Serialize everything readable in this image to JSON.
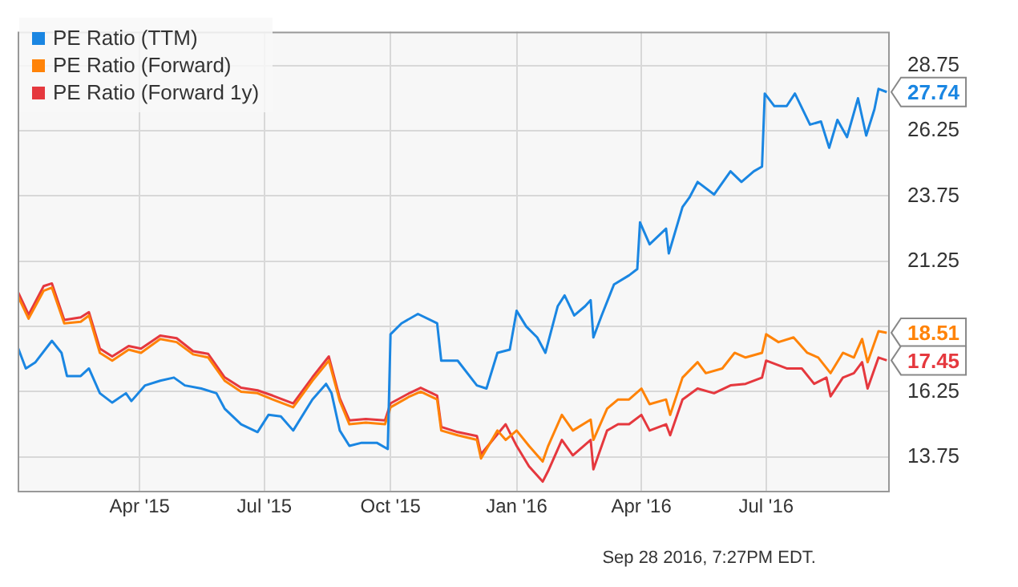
{
  "chart_data": {
    "type": "line",
    "xlim": [
      "2015-01-02",
      "2016-09-28"
    ],
    "xticks": [
      {
        "value": "2015-04-01",
        "label": "Apr '15"
      },
      {
        "value": "2015-07-01",
        "label": "Jul '15"
      },
      {
        "value": "2015-10-01",
        "label": "Oct '15"
      },
      {
        "value": "2016-01-01",
        "label": "Jan '16"
      },
      {
        "value": "2016-04-01",
        "label": "Apr '16"
      },
      {
        "value": "2016-07-01",
        "label": "Jul '16"
      }
    ],
    "ylim": [
      12.45,
      30.05
    ],
    "yticks": [
      13.75,
      16.25,
      {
        "value": 18.75,
        "label": null
      },
      21.25,
      23.75,
      26.25,
      28.75
    ],
    "grid": true,
    "legend": "top left",
    "marker": "none",
    "line_style": "solid",
    "annotations": [
      "Sep 28 2016, 7:27PM EDT."
    ],
    "series": [
      {
        "name": "PE Ratio (TTM)",
        "color": "#1a86e2",
        "x": [
          "2015-01-02",
          "2015-01-08",
          "2015-01-15",
          "2015-01-27",
          "2015-02-03",
          "2015-02-07",
          "2015-02-17",
          "2015-02-23",
          "2015-03-03",
          "2015-03-12",
          "2015-03-22",
          "2015-03-26",
          "2015-04-05",
          "2015-04-16",
          "2015-04-26",
          "2015-05-04",
          "2015-05-16",
          "2015-05-27",
          "2015-06-02",
          "2015-06-14",
          "2015-06-26",
          "2015-07-04",
          "2015-07-13",
          "2015-07-22",
          "2015-08-05",
          "2015-08-15",
          "2015-08-19",
          "2015-08-25",
          "2015-09-01",
          "2015-09-10",
          "2015-09-21",
          "2015-09-29",
          "2015-10-01",
          "2015-10-09",
          "2015-10-21",
          "2015-11-04",
          "2015-11-07",
          "2015-11-19",
          "2015-12-03",
          "2015-12-10",
          "2015-12-18",
          "2015-12-27",
          "2016-01-01",
          "2016-01-08",
          "2016-01-16",
          "2016-01-22",
          "2016-01-31",
          "2016-02-05",
          "2016-02-12",
          "2016-02-20",
          "2016-02-24",
          "2016-02-26",
          "2016-03-03",
          "2016-03-12",
          "2016-03-23",
          "2016-03-29",
          "2016-03-31",
          "2016-04-07",
          "2016-04-19",
          "2016-04-21",
          "2016-05-01",
          "2016-05-06",
          "2016-05-12",
          "2016-05-24",
          "2016-06-05",
          "2016-06-13",
          "2016-06-22",
          "2016-06-28",
          "2016-06-30",
          "2016-07-07",
          "2016-07-16",
          "2016-07-22",
          "2016-08-02",
          "2016-08-10",
          "2016-08-16",
          "2016-08-22",
          "2016-08-29",
          "2016-09-06",
          "2016-09-12",
          "2016-09-18",
          "2016-09-21",
          "2016-09-27"
        ],
        "values": [
          17.97,
          17.14,
          17.38,
          18.2,
          17.74,
          16.85,
          16.85,
          17.14,
          16.19,
          15.83,
          16.19,
          15.89,
          16.49,
          16.67,
          16.79,
          16.49,
          16.37,
          16.19,
          15.6,
          15.0,
          14.7,
          15.36,
          15.3,
          14.76,
          15.95,
          16.55,
          16.19,
          14.76,
          14.17,
          14.29,
          14.29,
          14.05,
          18.45,
          18.87,
          19.23,
          18.87,
          17.44,
          17.44,
          16.49,
          16.37,
          17.74,
          17.86,
          19.35,
          18.75,
          18.33,
          17.74,
          19.53,
          19.94,
          19.17,
          19.53,
          19.76,
          18.33,
          19.17,
          20.36,
          20.71,
          20.95,
          22.74,
          21.9,
          22.5,
          21.55,
          23.33,
          23.69,
          24.29,
          23.81,
          24.7,
          24.29,
          24.7,
          24.88,
          27.68,
          27.2,
          27.2,
          27.68,
          26.49,
          26.61,
          25.6,
          26.67,
          26.01,
          27.5,
          26.07,
          27.08,
          27.86,
          27.74
        ],
        "value_labels": [
          null,
          null,
          null,
          null,
          null,
          null,
          null,
          null,
          null,
          null,
          null,
          null,
          null,
          null,
          null,
          null,
          null,
          null,
          null,
          null,
          null,
          null,
          null,
          null,
          null,
          null,
          null,
          null,
          null,
          null,
          null,
          null,
          null,
          null,
          null,
          null,
          null,
          null,
          null,
          null,
          null,
          null,
          null,
          null,
          null,
          null,
          null,
          null,
          null,
          null,
          null,
          null,
          null,
          null,
          null,
          null,
          null,
          null,
          null,
          null,
          null,
          null,
          null,
          null,
          null,
          null,
          null,
          null,
          null,
          null,
          null,
          null,
          null,
          null,
          null,
          null,
          null,
          null,
          null,
          null,
          null,
          "27.74"
        ]
      },
      {
        "name": "PE Ratio (Forward)",
        "color": "#ff8308",
        "x": [
          "2015-01-02",
          "2015-01-10",
          "2015-01-21",
          "2015-01-27",
          "2015-02-05",
          "2015-02-17",
          "2015-02-23",
          "2015-03-03",
          "2015-03-12",
          "2015-03-24",
          "2015-04-02",
          "2015-04-16",
          "2015-04-28",
          "2015-05-10",
          "2015-05-21",
          "2015-06-02",
          "2015-06-14",
          "2015-06-26",
          "2015-07-07",
          "2015-07-22",
          "2015-08-05",
          "2015-08-17",
          "2015-08-25",
          "2015-09-01",
          "2015-09-13",
          "2015-09-27",
          "2015-10-01",
          "2015-10-15",
          "2015-10-23",
          "2015-11-04",
          "2015-11-07",
          "2015-11-19",
          "2015-12-03",
          "2015-12-06",
          "2015-12-18",
          "2015-12-24",
          "2016-01-01",
          "2016-01-10",
          "2016-01-20",
          "2016-01-24",
          "2016-02-03",
          "2016-02-11",
          "2016-02-24",
          "2016-02-26",
          "2016-03-07",
          "2016-03-15",
          "2016-03-23",
          "2016-04-01",
          "2016-04-07",
          "2016-04-19",
          "2016-04-22",
          "2016-05-01",
          "2016-05-12",
          "2016-05-18",
          "2016-05-30",
          "2016-06-08",
          "2016-06-16",
          "2016-06-28",
          "2016-07-01",
          "2016-07-10",
          "2016-07-21",
          "2016-07-31",
          "2016-08-08",
          "2016-08-17",
          "2016-08-26",
          "2016-09-03",
          "2016-09-09",
          "2016-09-13",
          "2016-09-21",
          "2016-09-27"
        ],
        "values": [
          19.94,
          19.05,
          20.12,
          20.24,
          18.87,
          18.93,
          19.17,
          17.74,
          17.44,
          17.86,
          17.74,
          18.27,
          18.15,
          17.68,
          17.56,
          16.67,
          16.25,
          16.19,
          15.95,
          15.65,
          16.67,
          17.44,
          15.89,
          15.0,
          15.06,
          15.0,
          15.65,
          16.07,
          16.25,
          15.95,
          14.76,
          14.58,
          14.4,
          13.69,
          14.76,
          14.4,
          14.76,
          14.17,
          13.57,
          14.17,
          15.36,
          14.76,
          15.18,
          14.4,
          15.6,
          15.95,
          15.95,
          16.37,
          15.77,
          15.95,
          15.36,
          16.79,
          17.38,
          16.96,
          17.14,
          17.74,
          17.56,
          17.74,
          18.45,
          18.15,
          18.33,
          17.74,
          17.56,
          16.96,
          17.74,
          17.56,
          18.27,
          17.38,
          18.57,
          18.51
        ],
        "value_labels": [
          null,
          null,
          null,
          null,
          null,
          null,
          null,
          null,
          null,
          null,
          null,
          null,
          null,
          null,
          null,
          null,
          null,
          null,
          null,
          null,
          null,
          null,
          null,
          null,
          null,
          null,
          null,
          null,
          null,
          null,
          null,
          null,
          null,
          null,
          null,
          null,
          null,
          null,
          null,
          null,
          null,
          null,
          null,
          null,
          null,
          null,
          null,
          null,
          null,
          null,
          null,
          null,
          null,
          null,
          null,
          null,
          null,
          null,
          null,
          null,
          null,
          null,
          null,
          null,
          null,
          null,
          null,
          null,
          null,
          "18.51"
        ]
      },
      {
        "name": "PE Ratio (Forward 1y)",
        "color": "#e5383e",
        "x": [
          "2015-01-02",
          "2015-01-10",
          "2015-01-21",
          "2015-01-27",
          "2015-02-05",
          "2015-02-17",
          "2015-02-23",
          "2015-03-03",
          "2015-03-12",
          "2015-03-24",
          "2015-04-02",
          "2015-04-16",
          "2015-04-28",
          "2015-05-10",
          "2015-05-21",
          "2015-06-02",
          "2015-06-14",
          "2015-06-26",
          "2015-07-07",
          "2015-07-22",
          "2015-08-05",
          "2015-08-17",
          "2015-08-25",
          "2015-09-01",
          "2015-09-13",
          "2015-09-27",
          "2015-10-01",
          "2015-10-15",
          "2015-10-23",
          "2015-11-04",
          "2015-11-07",
          "2015-11-19",
          "2015-12-03",
          "2015-12-06",
          "2015-12-24",
          "2016-01-01",
          "2016-01-10",
          "2016-01-20",
          "2016-01-24",
          "2016-02-03",
          "2016-02-11",
          "2016-02-24",
          "2016-02-26",
          "2016-03-07",
          "2016-03-15",
          "2016-03-23",
          "2016-04-01",
          "2016-04-07",
          "2016-04-19",
          "2016-04-22",
          "2016-05-01",
          "2016-05-12",
          "2016-05-24",
          "2016-06-05",
          "2016-06-16",
          "2016-06-28",
          "2016-07-01",
          "2016-07-16",
          "2016-07-27",
          "2016-08-05",
          "2016-08-14",
          "2016-08-17",
          "2016-08-26",
          "2016-09-03",
          "2016-09-09",
          "2016-09-13",
          "2016-09-21",
          "2016-09-27"
        ],
        "values": [
          20.1,
          19.2,
          20.3,
          20.4,
          19.0,
          19.1,
          19.3,
          17.9,
          17.6,
          18.0,
          17.9,
          18.4,
          18.3,
          17.8,
          17.7,
          16.8,
          16.4,
          16.3,
          16.1,
          15.8,
          16.8,
          17.6,
          16.0,
          15.15,
          15.2,
          15.15,
          15.8,
          16.2,
          16.4,
          16.1,
          14.9,
          14.7,
          14.55,
          13.85,
          15.0,
          14.17,
          13.39,
          12.8,
          13.21,
          14.4,
          13.81,
          14.4,
          13.27,
          14.76,
          15.0,
          15.0,
          15.36,
          14.76,
          15.0,
          14.58,
          15.95,
          16.37,
          16.19,
          16.49,
          16.55,
          16.79,
          17.44,
          17.14,
          17.14,
          16.55,
          16.79,
          16.07,
          16.79,
          16.96,
          17.38,
          16.37,
          17.56,
          17.45
        ],
        "value_labels": [
          null,
          null,
          null,
          null,
          null,
          null,
          null,
          null,
          null,
          null,
          null,
          null,
          null,
          null,
          null,
          null,
          null,
          null,
          null,
          null,
          null,
          null,
          null,
          null,
          null,
          null,
          null,
          null,
          null,
          null,
          null,
          null,
          null,
          null,
          null,
          null,
          null,
          null,
          null,
          null,
          null,
          null,
          null,
          null,
          null,
          null,
          null,
          null,
          null,
          null,
          null,
          null,
          null,
          null,
          null,
          null,
          null,
          null,
          null,
          null,
          null,
          null,
          null,
          null,
          null,
          null,
          null,
          "17.45"
        ]
      }
    ]
  }
}
